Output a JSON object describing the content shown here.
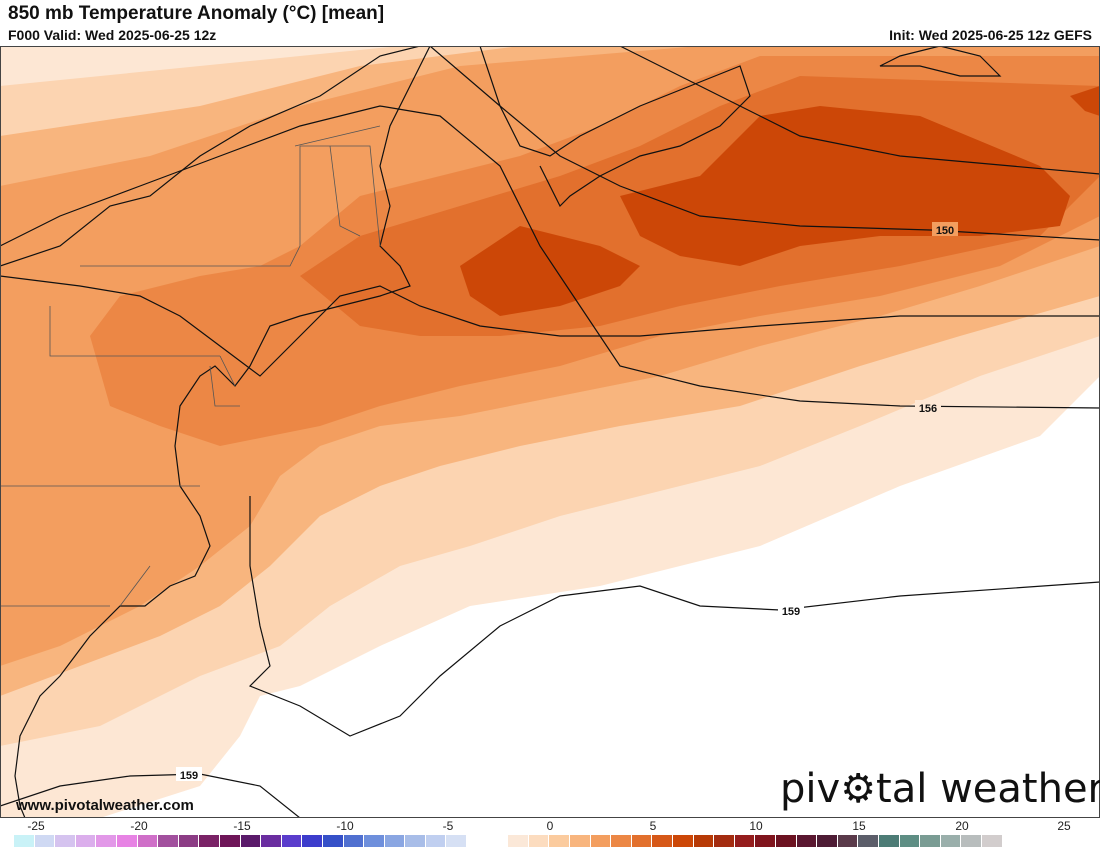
{
  "header": {
    "title": "850 mb Temperature Anomaly (°C) [mean]",
    "valid": "F000 Valid: Wed 2025-06-25 12z",
    "init": "Init: Wed 2025-06-25 12z GEFS"
  },
  "map": {
    "contour_labels": [
      "150",
      "156",
      "159",
      "159"
    ]
  },
  "footer": {
    "url": "www.pivotalweather.com",
    "logo_left": "piv",
    "logo_right": "tal weather"
  },
  "colorbar": {
    "ticks": [
      "-25",
      "-20",
      "-15",
      "-10",
      "-5",
      "0",
      "5",
      "10",
      "15",
      "20",
      "25"
    ],
    "colors": [
      "#c9f2f7",
      "#cfd9f3",
      "#d5c3ef",
      "#dbaeec",
      "#e298e8",
      "#e783e4",
      "#cf6fc8",
      "#a2509e",
      "#8c3c85",
      "#7a2266",
      "#6e1558",
      "#5a1a6a",
      "#6a2da0",
      "#5a3ccc",
      "#3c3ccc",
      "#3550c8",
      "#5070d0",
      "#6e8fdc",
      "#8aa6e2",
      "#a8bde8",
      "#c0cff0",
      "#d6e0f4",
      "#ffffff",
      "#ffffff",
      "#fbe8d8",
      "#fcdcbf",
      "#fbcb9e",
      "#f8b57e",
      "#f39e5f",
      "#ec8745",
      "#e2702d",
      "#d65818",
      "#cc4707",
      "#b73a06",
      "#a42c10",
      "#951d1d",
      "#80141d",
      "#6c1221",
      "#5a1730",
      "#4e1c35",
      "#5a3a4a",
      "#5c5e6a",
      "#4d7c76",
      "#5e8e84",
      "#7a9c94",
      "#9aafab",
      "#b8bdbd",
      "#d2cdcd"
    ]
  }
}
